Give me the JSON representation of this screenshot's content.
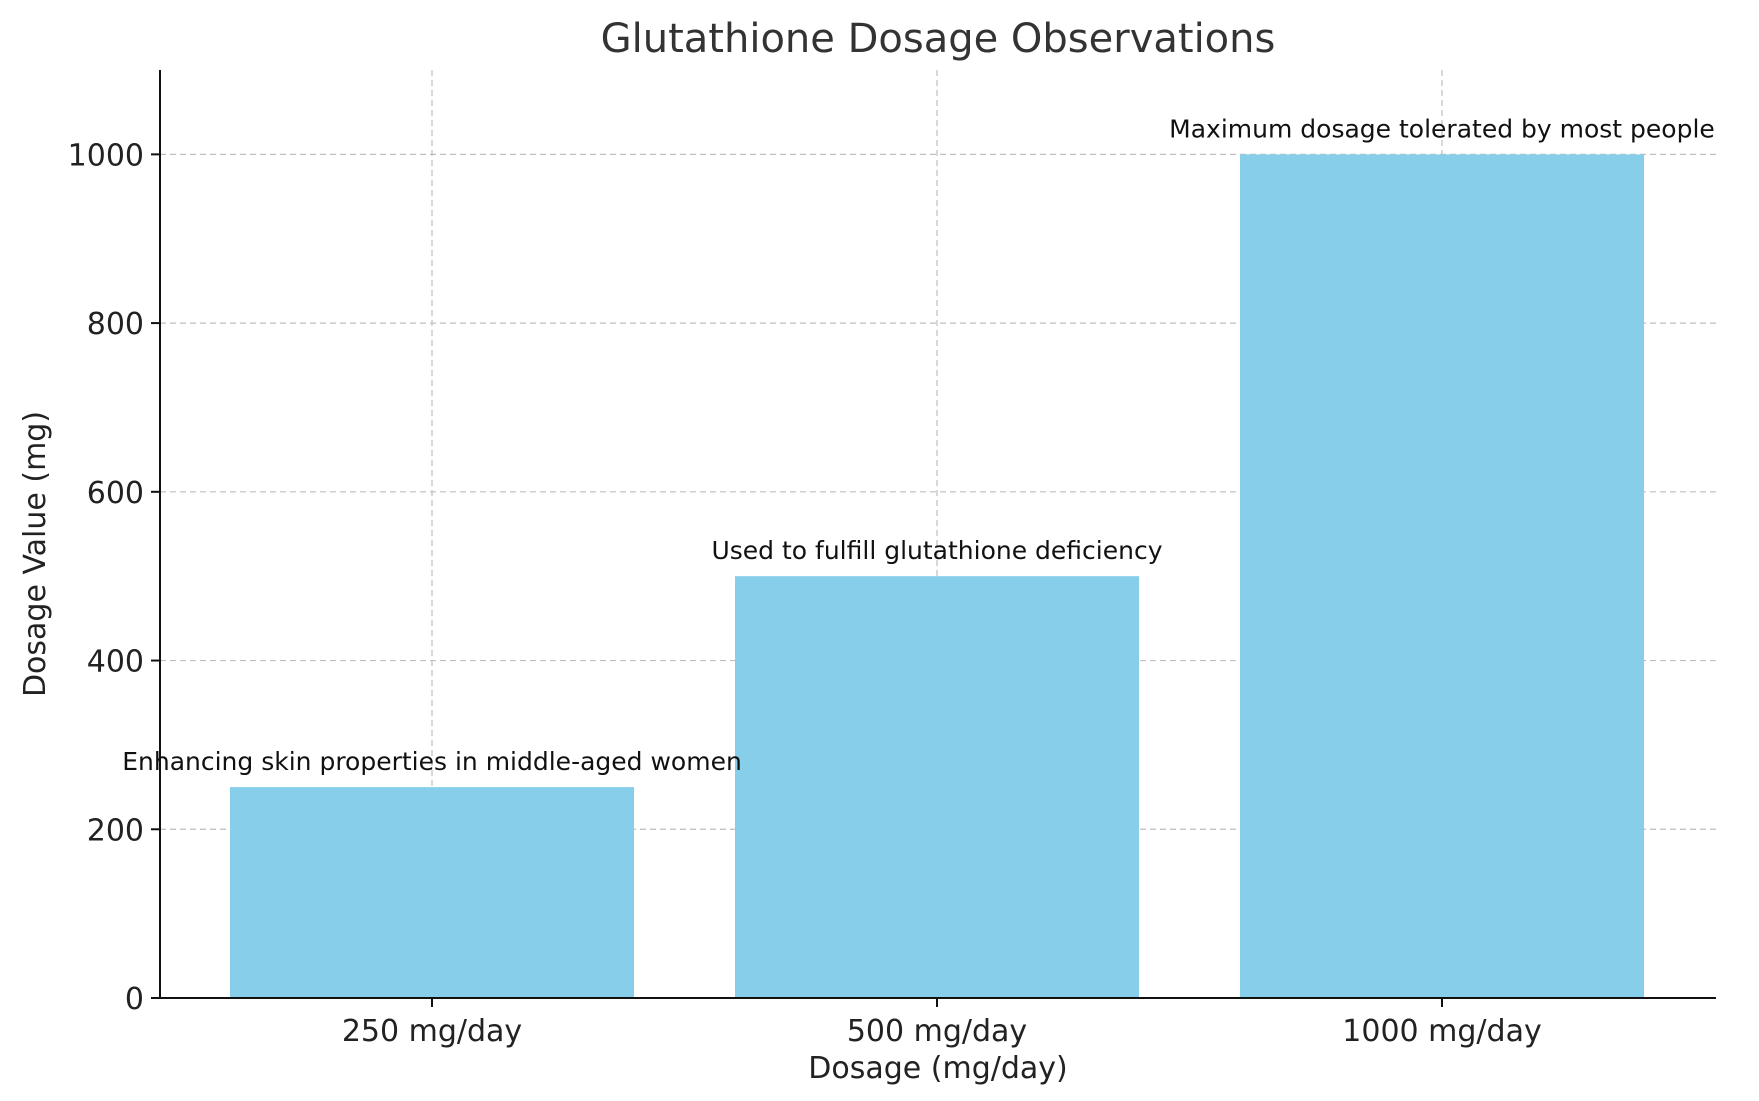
{
  "chart_data": {
    "type": "bar",
    "title": "Glutathione Dosage Observations",
    "xlabel": "Dosage (mg/day)",
    "ylabel": "Dosage Value (mg)",
    "categories": [
      "250 mg/day",
      "500 mg/day",
      "1000 mg/day"
    ],
    "values": [
      250,
      500,
      1000
    ],
    "annotations": [
      "Enhancing skin properties in middle-aged women",
      "Used to fulfill glutathione deficiency",
      "Maximum dosage tolerated by most people"
    ],
    "ylim": [
      0,
      1100
    ],
    "yticks": [
      0,
      200,
      400,
      600,
      800,
      1000
    ],
    "grid": true,
    "bar_color": "#87CEEB"
  }
}
